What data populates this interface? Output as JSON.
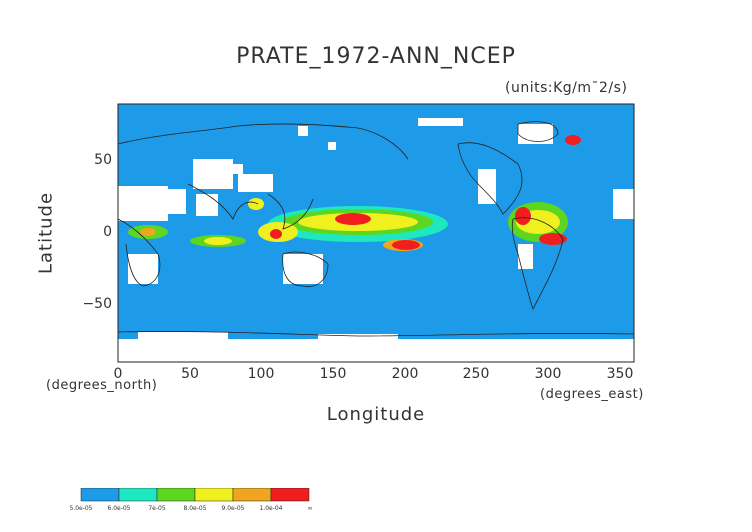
{
  "title": "PRATE_1972-ANN_NCEP",
  "units": "(units:Kg/m¯2/s)",
  "xlabel": "Longitude",
  "ylabel": "Latitude",
  "x_sublabel": "(degrees_east)",
  "y_sublabel": "(degrees_north)",
  "x_ticks": [
    "0",
    "50",
    "100",
    "150",
    "200",
    "250",
    "300",
    "350"
  ],
  "y_ticks": [
    "50",
    "0",
    "−50"
  ],
  "colorbar": {
    "labels": [
      "5.0e-05",
      "6.0e-05",
      "7e-05",
      "8.0e-05",
      "9.0e-05",
      "1.0e-04",
      "∞"
    ],
    "colors": [
      "#1e9be8",
      "#1ee8c0",
      "#5cd61e",
      "#f0f01e",
      "#f0a51e",
      "#f01e1e"
    ]
  },
  "colors": {
    "ocean": "#1e9be8",
    "land_missing": "#ffffff",
    "coast": "#222222"
  },
  "chart_data": {
    "type": "heatmap",
    "variable": "PRATE_1972-ANN_NCEP",
    "xlim": [
      0,
      360
    ],
    "ylim": [
      -90,
      90
    ],
    "levels": [
      5e-05,
      6e-05,
      7e-05,
      8e-05,
      9e-05,
      0.0001
    ]
  }
}
